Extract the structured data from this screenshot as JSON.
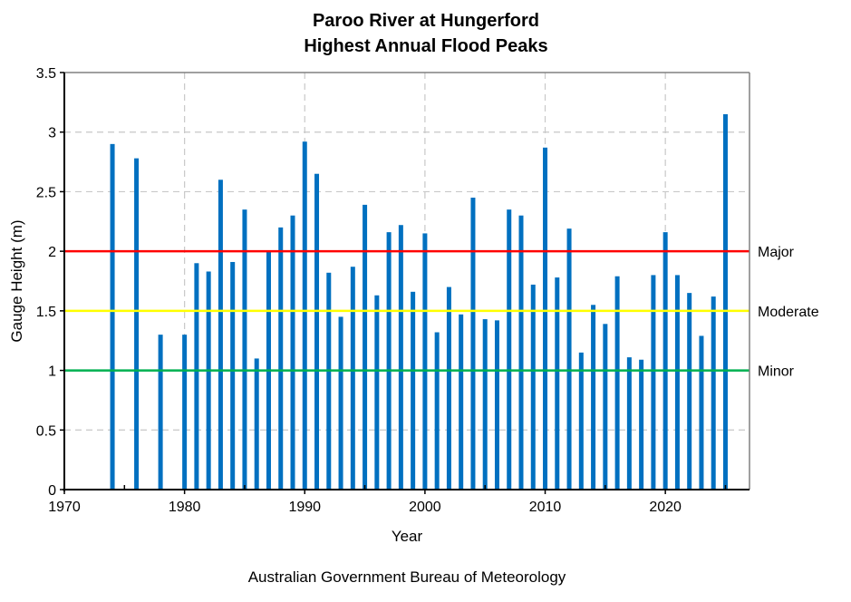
{
  "chart_data": {
    "type": "bar",
    "title": [
      "Paroo River at Hungerford",
      "Highest Annual Flood Peaks"
    ],
    "xlabel": "Year",
    "ylabel": "Gauge Height (m)",
    "xlim": [
      1970,
      2027
    ],
    "ylim": [
      0,
      3.5
    ],
    "xticks": [
      1970,
      1980,
      1990,
      2000,
      2010,
      2020
    ],
    "yticks": [
      "0",
      "0.5",
      "1",
      "1.5",
      "2",
      "2.5",
      "3",
      "3.5"
    ],
    "grid": true,
    "bar_color": "#0070C0",
    "thresholds": [
      {
        "name": "Major",
        "value": 2.0,
        "color": "#FF0000"
      },
      {
        "name": "Moderate",
        "value": 1.5,
        "color": "#FFFF00"
      },
      {
        "name": "Minor",
        "value": 1.0,
        "color": "#00B050"
      }
    ],
    "x": [
      1974,
      1976,
      1978,
      1980,
      1981,
      1982,
      1983,
      1984,
      1985,
      1986,
      1987,
      1988,
      1989,
      1990,
      1991,
      1992,
      1993,
      1994,
      1995,
      1996,
      1997,
      1998,
      1999,
      2000,
      2001,
      2002,
      2003,
      2004,
      2005,
      2006,
      2007,
      2008,
      2009,
      2010,
      2011,
      2012,
      2013,
      2014,
      2015,
      2016,
      2017,
      2018,
      2019,
      2020,
      2021,
      2022,
      2023,
      2024,
      2025
    ],
    "values": [
      2.9,
      2.78,
      1.3,
      1.3,
      1.9,
      1.83,
      2.6,
      1.91,
      2.35,
      1.1,
      2.0,
      2.2,
      2.3,
      2.92,
      2.65,
      1.82,
      1.45,
      1.87,
      2.39,
      1.63,
      2.16,
      2.22,
      1.66,
      2.15,
      1.32,
      1.7,
      1.47,
      2.45,
      1.43,
      1.42,
      2.35,
      2.3,
      1.72,
      2.87,
      1.78,
      2.19,
      1.15,
      1.55,
      1.39,
      1.79,
      1.11,
      1.09,
      1.8,
      2.16,
      1.8,
      1.65,
      1.29,
      1.62,
      3.15
    ]
  },
  "footer": "Australian Government Bureau of Meteorology"
}
